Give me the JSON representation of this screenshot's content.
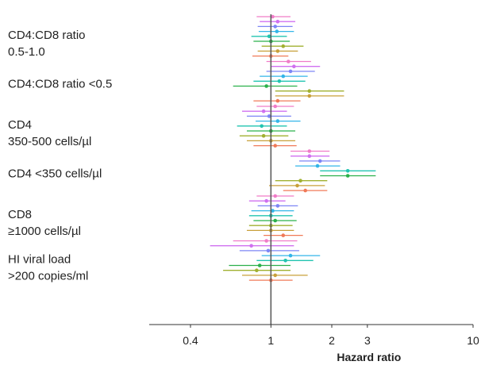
{
  "chart_data": {
    "type": "scatter",
    "subtype": "forest-plot",
    "xlabel": "Hazard ratio",
    "x_scale": "log",
    "xlim": [
      0.25,
      10
    ],
    "x_ticks": [
      {
        "value": 0.4,
        "label": "0.4"
      },
      {
        "value": 1,
        "label": "1"
      },
      {
        "value": 2,
        "label": "2"
      },
      {
        "value": 3,
        "label": "3"
      },
      {
        "value": 10,
        "label": "10"
      }
    ],
    "reference_line": 1,
    "legend": "none",
    "grid": false,
    "series_colors": [
      "#f07cc8",
      "#d070f0",
      "#7d86f5",
      "#33b5e8",
      "#22c4b0",
      "#2ab04a",
      "#a0b030",
      "#c8a03a",
      "#f07a58"
    ],
    "groups": [
      {
        "label_lines": [
          "CD4:CD8 ratio",
          "0.5-1.0"
        ],
        "estimates": [
          {
            "hr": 1.02,
            "lo": 0.85,
            "hi": 1.25
          },
          {
            "hr": 1.08,
            "lo": 0.88,
            "hi": 1.32
          },
          {
            "hr": 1.05,
            "lo": 0.86,
            "hi": 1.28
          },
          {
            "hr": 1.07,
            "lo": 0.87,
            "hi": 1.3
          },
          {
            "hr": 0.98,
            "lo": 0.8,
            "hi": 1.2
          },
          {
            "hr": 1.0,
            "lo": 0.82,
            "hi": 1.24
          },
          {
            "hr": 1.15,
            "lo": 0.9,
            "hi": 1.45
          },
          {
            "hr": 1.08,
            "lo": 0.86,
            "hi": 1.36
          },
          {
            "hr": 1.0,
            "lo": 0.81,
            "hi": 1.22
          }
        ]
      },
      {
        "label_lines": [
          "CD4:CD8 ratio <0.5"
        ],
        "estimates": [
          {
            "hr": 1.22,
            "lo": 0.95,
            "hi": 1.58
          },
          {
            "hr": 1.3,
            "lo": 1.0,
            "hi": 1.75
          },
          {
            "hr": 1.25,
            "lo": 0.95,
            "hi": 1.65
          },
          {
            "hr": 1.15,
            "lo": 0.88,
            "hi": 1.52
          },
          {
            "hr": 1.1,
            "lo": 0.82,
            "hi": 1.48
          },
          {
            "hr": 0.95,
            "lo": 0.65,
            "hi": 1.35
          },
          {
            "hr": 1.55,
            "lo": 1.05,
            "hi": 2.3
          },
          {
            "hr": 1.55,
            "lo": 1.05,
            "hi": 2.3
          },
          {
            "hr": 1.08,
            "lo": 0.82,
            "hi": 1.4
          }
        ]
      },
      {
        "label_lines": [
          "CD4",
          "350-500 cells/µl"
        ],
        "estimates": [
          {
            "hr": 1.05,
            "lo": 0.85,
            "hi": 1.3
          },
          {
            "hr": 0.92,
            "lo": 0.72,
            "hi": 1.2
          },
          {
            "hr": 0.98,
            "lo": 0.76,
            "hi": 1.26
          },
          {
            "hr": 1.08,
            "lo": 0.84,
            "hi": 1.4
          },
          {
            "hr": 0.9,
            "lo": 0.68,
            "hi": 1.2
          },
          {
            "hr": 1.0,
            "lo": 0.76,
            "hi": 1.32
          },
          {
            "hr": 0.92,
            "lo": 0.7,
            "hi": 1.22
          },
          {
            "hr": 1.0,
            "lo": 0.76,
            "hi": 1.32
          },
          {
            "hr": 1.05,
            "lo": 0.82,
            "hi": 1.34
          }
        ]
      },
      {
        "label_lines": [
          "CD4 <350 cells/µl"
        ],
        "estimates": [
          {
            "hr": 1.55,
            "lo": 1.25,
            "hi": 1.95
          },
          {
            "hr": 1.55,
            "lo": 1.25,
            "hi": 1.95
          },
          {
            "hr": 1.75,
            "lo": 1.38,
            "hi": 2.2
          },
          {
            "hr": 1.7,
            "lo": 1.32,
            "hi": 2.2
          },
          {
            "hr": 2.4,
            "lo": 1.75,
            "hi": 3.3
          },
          {
            "hr": 2.4,
            "lo": 1.75,
            "hi": 3.3
          },
          {
            "hr": 1.4,
            "lo": 1.05,
            "hi": 1.9
          },
          {
            "hr": 1.35,
            "lo": 0.98,
            "hi": 1.85
          },
          {
            "hr": 1.48,
            "lo": 1.15,
            "hi": 1.9
          }
        ]
      },
      {
        "label_lines": [
          "CD8",
          "≥1000 cells/µl"
        ],
        "estimates": [
          {
            "hr": 1.05,
            "lo": 0.85,
            "hi": 1.3
          },
          {
            "hr": 0.95,
            "lo": 0.78,
            "hi": 1.18
          },
          {
            "hr": 1.08,
            "lo": 0.86,
            "hi": 1.36
          },
          {
            "hr": 1.02,
            "lo": 0.8,
            "hi": 1.3
          },
          {
            "hr": 1.0,
            "lo": 0.78,
            "hi": 1.28
          },
          {
            "hr": 1.05,
            "lo": 0.82,
            "hi": 1.34
          },
          {
            "hr": 1.0,
            "lo": 0.78,
            "hi": 1.28
          },
          {
            "hr": 1.0,
            "lo": 0.76,
            "hi": 1.3
          },
          {
            "hr": 1.15,
            "lo": 0.92,
            "hi": 1.44
          }
        ]
      },
      {
        "label_lines": [
          "HI viral load",
          ">200 copies/ml"
        ],
        "estimates": [
          {
            "hr": 0.95,
            "lo": 0.65,
            "hi": 1.35
          },
          {
            "hr": 0.8,
            "lo": 0.5,
            "hi": 1.3
          },
          {
            "hr": 0.97,
            "lo": 0.7,
            "hi": 1.38
          },
          {
            "hr": 1.25,
            "lo": 0.9,
            "hi": 1.75
          },
          {
            "hr": 1.18,
            "lo": 0.85,
            "hi": 1.62
          },
          {
            "hr": 0.88,
            "lo": 0.62,
            "hi": 1.25
          },
          {
            "hr": 0.85,
            "lo": 0.58,
            "hi": 1.25
          },
          {
            "hr": 1.05,
            "lo": 0.72,
            "hi": 1.52
          },
          {
            "hr": 1.0,
            "lo": 0.78,
            "hi": 1.28
          }
        ]
      }
    ]
  }
}
